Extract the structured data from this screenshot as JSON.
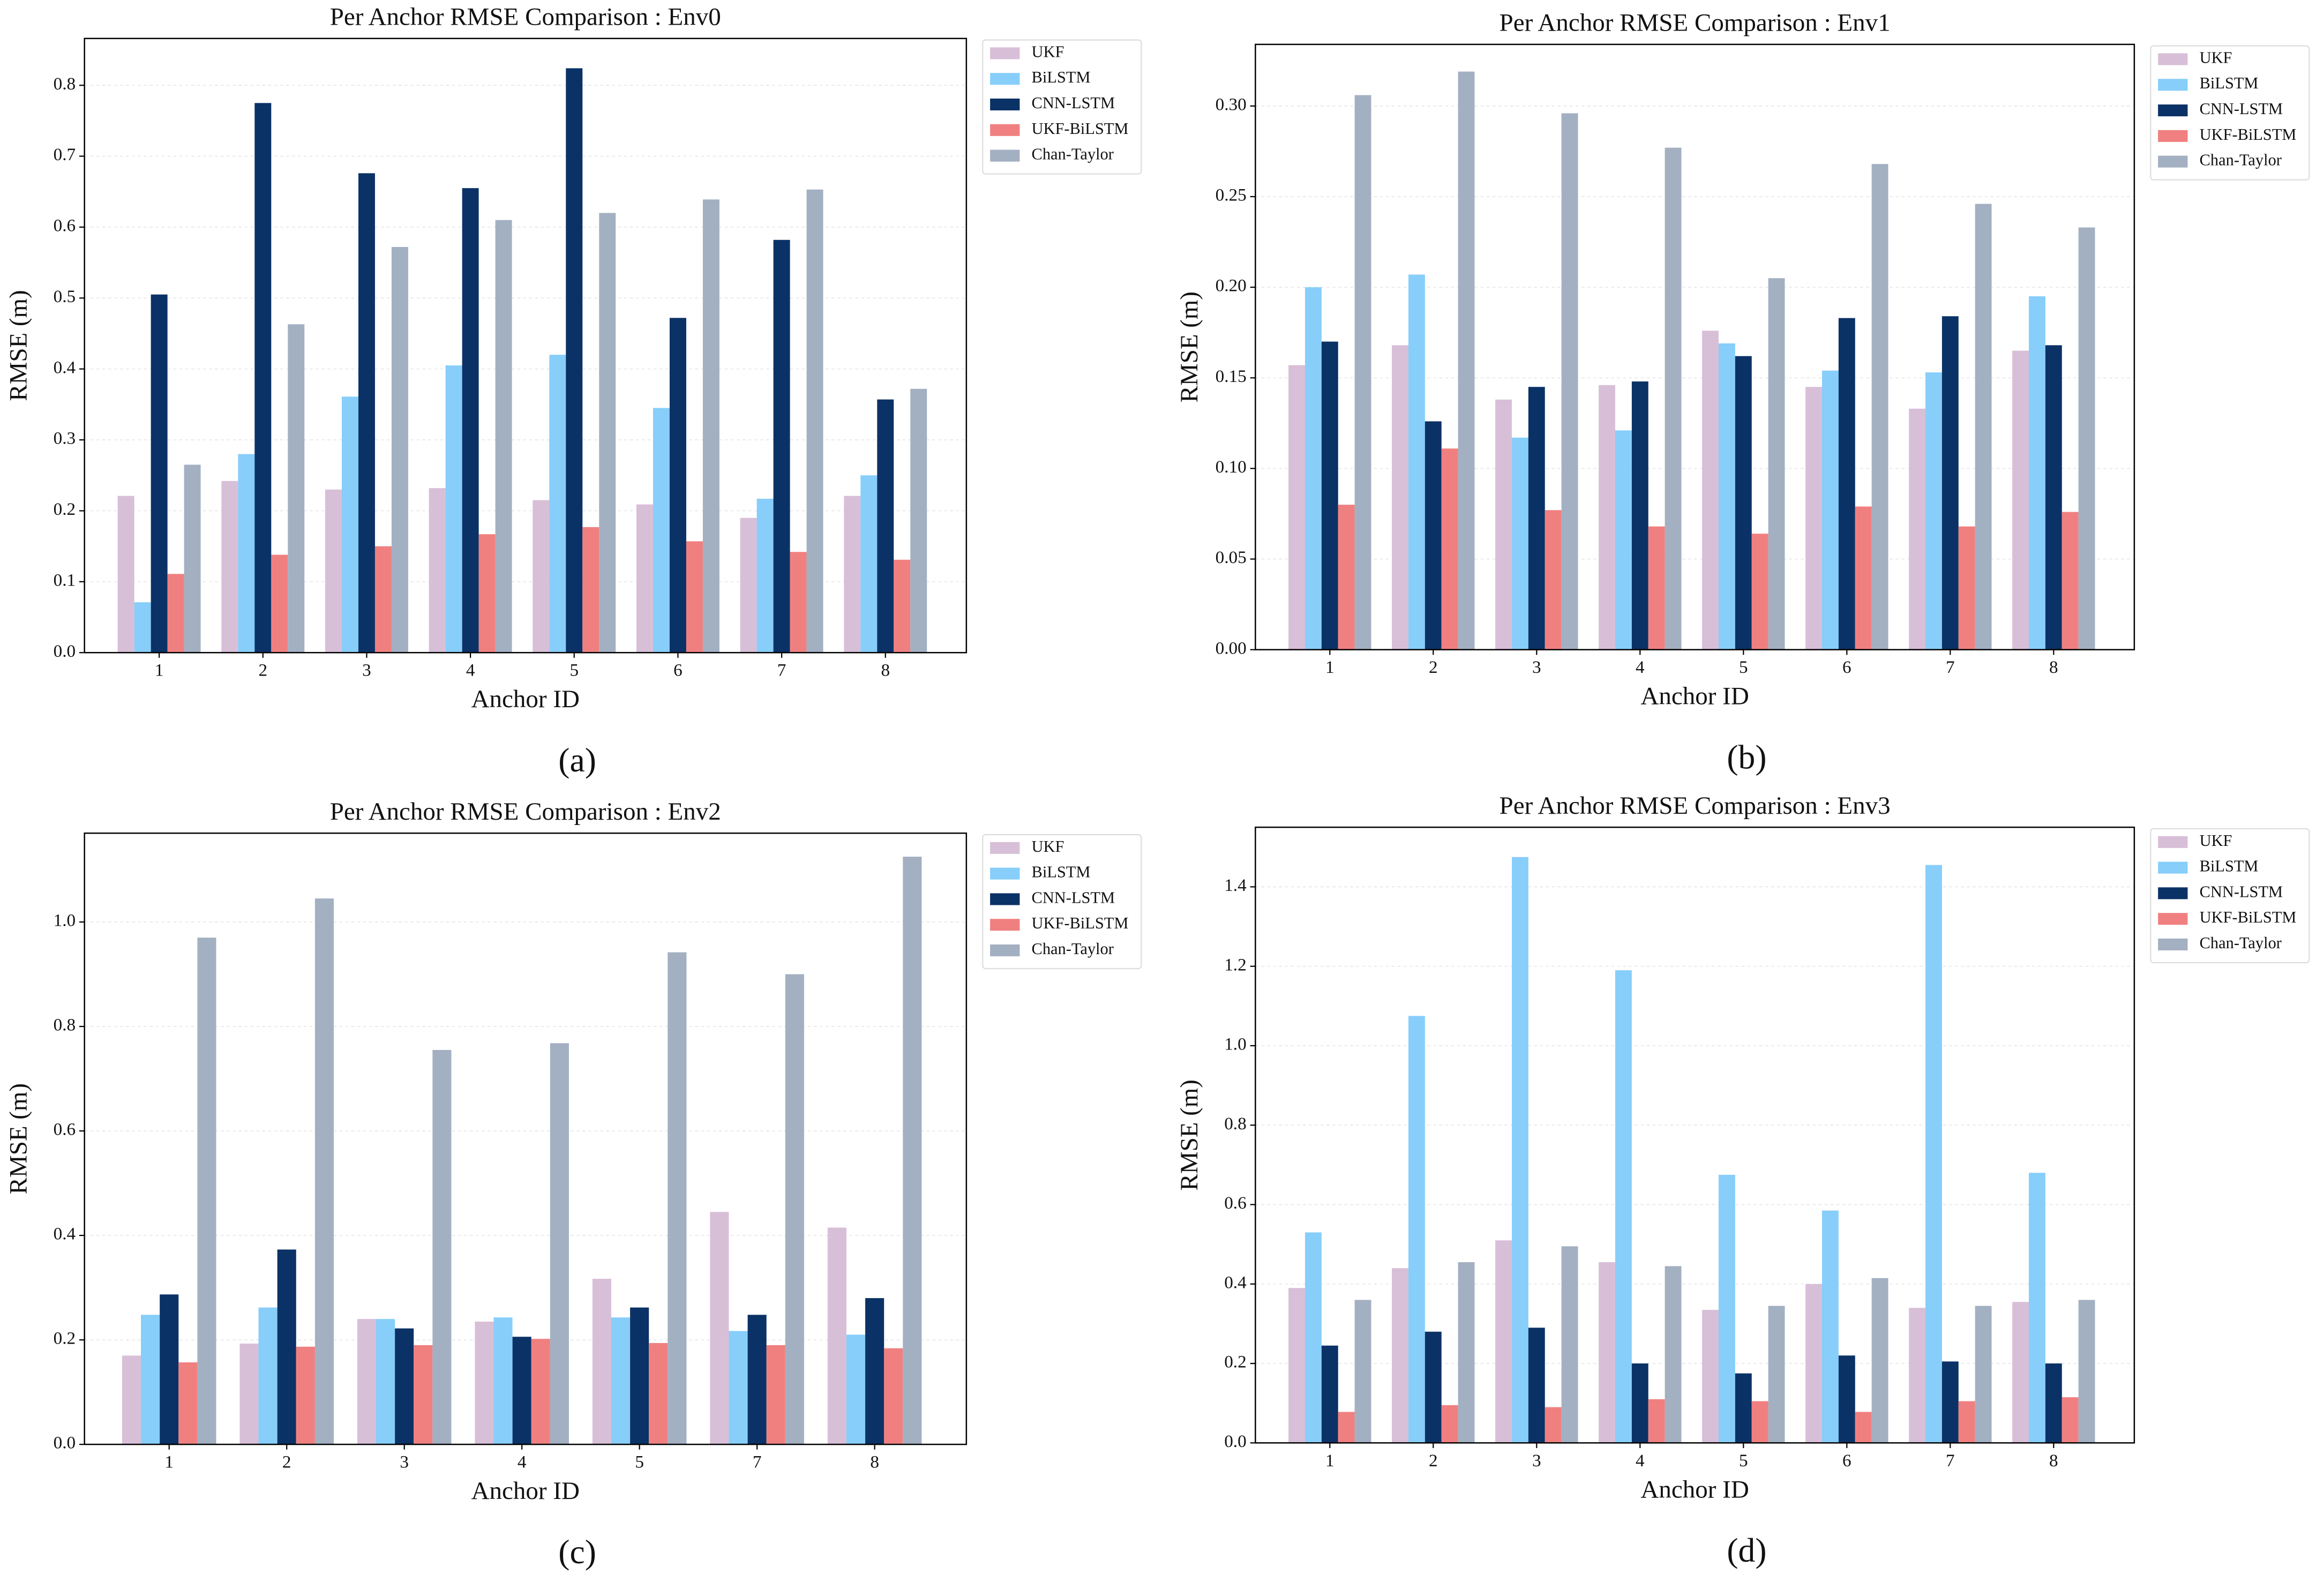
{
  "chart_data": [
    {
      "type": "bar",
      "title": "Per Anchor RMSE Comparison : Env0",
      "x_label": "Anchor ID",
      "y_label": "RMSE (m)",
      "label": "(a)",
      "categories": [
        "1",
        "2",
        "3",
        "4",
        "5",
        "6",
        "7",
        "8"
      ],
      "ylim": [
        0,
        0.866
      ],
      "yticks": [
        {
          "value": 0,
          "label": "0.0"
        },
        0.1,
        0.2,
        0.3,
        0.4,
        0.5,
        0.6,
        0.7,
        0.8
      ],
      "grid": true,
      "legend": "outside right",
      "series": [
        {
          "name": "UKF",
          "color": "#d8bfd8",
          "values": [
            0.221,
            0.242,
            0.23,
            0.232,
            0.215,
            0.209,
            0.19,
            0.221
          ]
        },
        {
          "name": "BiLSTM",
          "color": "#87cefa",
          "values": [
            0.071,
            0.28,
            0.361,
            0.405,
            0.42,
            0.345,
            0.217,
            0.25
          ]
        },
        {
          "name": "CNN-LSTM",
          "color": "#0b3266",
          "values": [
            0.505,
            0.775,
            0.676,
            0.655,
            0.824,
            0.472,
            0.582,
            0.357
          ]
        },
        {
          "name": "UKF-BiLSTM",
          "color": "#f08080",
          "values": [
            0.111,
            0.138,
            0.15,
            0.167,
            0.177,
            0.157,
            0.142,
            0.131
          ]
        },
        {
          "name": "Chan-Taylor",
          "color": "#a3b0c2",
          "values": [
            0.265,
            0.463,
            0.572,
            0.61,
            0.62,
            0.639,
            0.653,
            0.372
          ]
        }
      ]
    },
    {
      "type": "bar",
      "title": "Per Anchor RMSE Comparison : Env1",
      "x_label": "Anchor ID",
      "y_label": "RMSE (m)",
      "label": "(b)",
      "categories": [
        "1",
        "2",
        "3",
        "4",
        "5",
        "6",
        "7",
        "8"
      ],
      "ylim": [
        0,
        0.334
      ],
      "yticks": [
        {
          "value": 0,
          "label": "0.00"
        },
        0.05,
        {
          "value": 0.1,
          "label": "0.10"
        },
        0.15,
        {
          "value": 0.2,
          "label": "0.20"
        },
        0.25,
        {
          "value": 0.3,
          "label": "0.30"
        }
      ],
      "grid": true,
      "legend": "outside right",
      "series": [
        {
          "name": "UKF",
          "color": "#d8bfd8",
          "values": [
            0.157,
            0.168,
            0.138,
            0.146,
            0.176,
            0.145,
            0.133,
            0.165
          ]
        },
        {
          "name": "BiLSTM",
          "color": "#87cefa",
          "values": [
            0.2,
            0.207,
            0.117,
            0.121,
            0.169,
            0.154,
            0.153,
            0.195
          ]
        },
        {
          "name": "CNN-LSTM",
          "color": "#0b3266",
          "values": [
            0.17,
            0.126,
            0.145,
            0.148,
            0.162,
            0.183,
            0.184,
            0.168
          ]
        },
        {
          "name": "UKF-BiLSTM",
          "color": "#f08080",
          "values": [
            0.08,
            0.111,
            0.077,
            0.068,
            0.064,
            0.079,
            0.068,
            0.076
          ]
        },
        {
          "name": "Chan-Taylor",
          "color": "#a3b0c2",
          "values": [
            0.306,
            0.319,
            0.296,
            0.277,
            0.205,
            0.268,
            0.246,
            0.233
          ]
        }
      ]
    },
    {
      "type": "bar",
      "title": "Per Anchor RMSE Comparison : Env2",
      "x_label": "Anchor ID",
      "y_label": "RMSE (m)",
      "label": "(c)",
      "categories": [
        "1",
        "2",
        "3",
        "4",
        "5",
        "7",
        "8"
      ],
      "ylim": [
        0,
        1.17
      ],
      "yticks": [
        {
          "value": 0,
          "label": "0.0"
        },
        0.2,
        0.4,
        0.6,
        0.8,
        {
          "value": 1,
          "label": "1.0"
        }
      ],
      "grid": true,
      "legend": "outside right",
      "series": [
        {
          "name": "UKF",
          "color": "#d8bfd8",
          "values": [
            0.17,
            0.193,
            0.24,
            0.235,
            0.317,
            0.445,
            0.415
          ]
        },
        {
          "name": "BiLSTM",
          "color": "#87cefa",
          "values": [
            0.248,
            0.262,
            0.24,
            0.243,
            0.243,
            0.217,
            0.21
          ]
        },
        {
          "name": "CNN-LSTM",
          "color": "#0b3266",
          "values": [
            0.287,
            0.373,
            0.222,
            0.206,
            0.262,
            0.248,
            0.28
          ]
        },
        {
          "name": "UKF-BiLSTM",
          "color": "#f08080",
          "values": [
            0.157,
            0.187,
            0.19,
            0.202,
            0.194,
            0.19,
            0.184
          ]
        },
        {
          "name": "Chan-Taylor",
          "color": "#a3b0c2",
          "values": [
            0.97,
            1.045,
            0.755,
            0.768,
            0.942,
            0.9,
            1.125
          ]
        }
      ]
    },
    {
      "type": "bar",
      "title": "Per Anchor RMSE Comparison : Env3",
      "x_label": "Anchor ID",
      "y_label": "RMSE (m)",
      "label": "(d)",
      "categories": [
        "1",
        "2",
        "3",
        "4",
        "5",
        "6",
        "7",
        "8"
      ],
      "ylim": [
        0,
        1.55
      ],
      "yticks": [
        {
          "value": 0,
          "label": "0.0"
        },
        0.2,
        0.4,
        0.6,
        0.8,
        {
          "value": 1,
          "label": "1.0"
        },
        1.2,
        1.4
      ],
      "grid": true,
      "legend": "outside right",
      "series": [
        {
          "name": "UKF",
          "color": "#d8bfd8",
          "values": [
            0.39,
            0.44,
            0.51,
            0.455,
            0.335,
            0.4,
            0.34,
            0.355
          ]
        },
        {
          "name": "BiLSTM",
          "color": "#87cefa",
          "values": [
            0.53,
            1.075,
            1.475,
            1.19,
            0.675,
            0.585,
            1.455,
            0.68
          ]
        },
        {
          "name": "CNN-LSTM",
          "color": "#0b3266",
          "values": [
            0.245,
            0.28,
            0.29,
            0.2,
            0.175,
            0.22,
            0.205,
            0.2
          ]
        },
        {
          "name": "UKF-BiLSTM",
          "color": "#f08080",
          "values": [
            0.078,
            0.095,
            0.09,
            0.11,
            0.105,
            0.078,
            0.105,
            0.115
          ]
        },
        {
          "name": "Chan-Taylor",
          "color": "#a3b0c2",
          "values": [
            0.36,
            0.455,
            0.495,
            0.445,
            0.345,
            0.415,
            0.345,
            0.36
          ]
        }
      ]
    }
  ]
}
